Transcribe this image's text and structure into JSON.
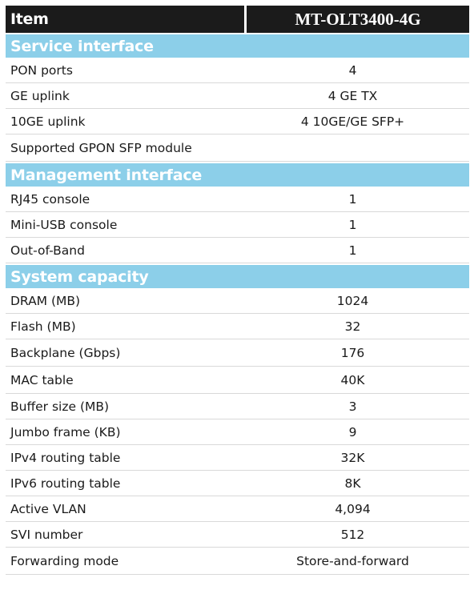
{
  "header": {
    "item_label": "Item",
    "model_label": "MT-OLT3400-4G"
  },
  "colors": {
    "header_bg": "#1b1b1b",
    "section_bg": "#8ccfe9",
    "section_text": "#ffffff"
  },
  "sections": [
    {
      "title": "Service interface",
      "rows": [
        {
          "label": "PON ports",
          "value": "4"
        },
        {
          "label": "GE uplink",
          "value": "4 GE TX"
        },
        {
          "label": "10GE uplink",
          "value": "4 10GE/GE SFP+"
        },
        {
          "label": "Supported GPON SFP module",
          "value": ""
        }
      ]
    },
    {
      "title": "Management interface",
      "rows": [
        {
          "label": "RJ45 console",
          "value": "1"
        },
        {
          "label": "Mini-USB console",
          "value": "1"
        },
        {
          "label": "Out-of-Band",
          "value": "1"
        }
      ]
    },
    {
      "title": "System capacity",
      "rows": [
        {
          "label": "DRAM (MB)",
          "value": "1024"
        },
        {
          "label": "Flash (MB)",
          "value": "32"
        },
        {
          "label": "Backplane (Gbps)",
          "value": "176"
        },
        {
          "label": "MAC table",
          "value": "40K"
        },
        {
          "label": "Buffer size (MB)",
          "value": "3"
        },
        {
          "label": "Jumbo frame (KB)",
          "value": "9"
        },
        {
          "label": "IPv4 routing table",
          "value": "32K"
        },
        {
          "label": "IPv6 routing table",
          "value": "8K"
        },
        {
          "label": "Active VLAN",
          "value": "4,094"
        },
        {
          "label": "SVI number",
          "value": "512"
        },
        {
          "label": "Forwarding mode",
          "value": "Store-and-forward"
        }
      ]
    }
  ]
}
